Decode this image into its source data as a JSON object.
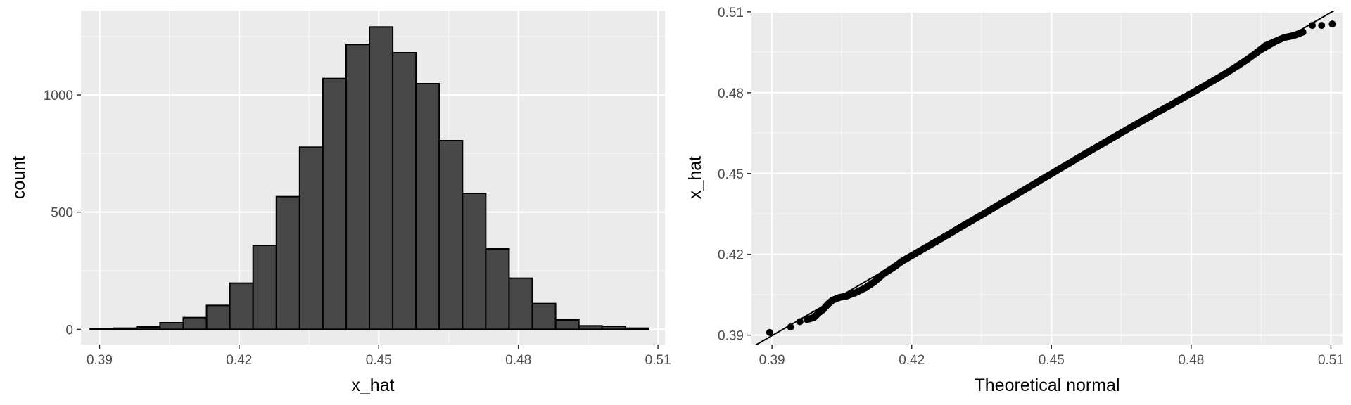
{
  "colors": {
    "panel_bg": "#ebebeb",
    "grid_major": "#ffffff",
    "grid_minor": "#f7f7f7",
    "bar_fill": "#474747",
    "bar_stroke": "#000000",
    "point": "#000000",
    "tick_text": "#4d4d4d",
    "tick_mark": "#333333"
  },
  "chart_data": [
    {
      "type": "bar",
      "subtype": "histogram",
      "xlabel": "x_hat",
      "ylabel": "count",
      "xlim": [
        0.386,
        0.5115
      ],
      "ylim": [
        -65,
        1360
      ],
      "x_ticks": [
        0.39,
        0.42,
        0.45,
        0.48,
        0.51
      ],
      "x_tick_labels": [
        "0.39",
        "0.42",
        "0.45",
        "0.48",
        "0.51"
      ],
      "y_ticks": [
        0,
        500,
        1000
      ],
      "y_tick_labels": [
        "0",
        "500",
        "1000"
      ],
      "grid": true,
      "bin_width": 0.005,
      "bins_start": [
        0.388,
        0.393,
        0.398,
        0.403,
        0.408,
        0.413,
        0.418,
        0.423,
        0.428,
        0.433,
        0.438,
        0.443,
        0.448,
        0.453,
        0.458,
        0.463,
        0.468,
        0.473,
        0.478,
        0.483,
        0.488,
        0.493,
        0.498,
        0.503
      ],
      "values": [
        2,
        5,
        10,
        28,
        50,
        102,
        197,
        358,
        566,
        777,
        1070,
        1215,
        1290,
        1180,
        1048,
        805,
        580,
        343,
        218,
        110,
        40,
        15,
        13,
        5
      ]
    },
    {
      "type": "scatter",
      "subtype": "qq-plot",
      "xlabel": "Theoretical normal",
      "ylabel": "x_hat",
      "xlim": [
        0.3856,
        0.5125
      ],
      "ylim": [
        0.3865,
        0.5105
      ],
      "x_ticks": [
        0.39,
        0.42,
        0.45,
        0.48,
        0.51
      ],
      "x_tick_labels": [
        "0.39",
        "0.42",
        "0.45",
        "0.48",
        "0.51"
      ],
      "y_ticks": [
        0.39,
        0.42,
        0.45,
        0.48,
        0.51
      ],
      "y_tick_labels": [
        "0.39",
        "0.42",
        "0.45",
        "0.48",
        "0.51"
      ],
      "grid": true,
      "reference_line": {
        "intercept": -0.0002,
        "slope": 1.0
      },
      "points": [
        [
          0.3895,
          0.391
        ],
        [
          0.394,
          0.393
        ],
        [
          0.396,
          0.395
        ],
        [
          0.3975,
          0.3958
        ],
        [
          0.399,
          0.3965
        ],
        [
          0.4,
          0.3982
        ],
        [
          0.401,
          0.3995
        ],
        [
          0.402,
          0.4015
        ],
        [
          0.403,
          0.403
        ],
        [
          0.4045,
          0.404
        ],
        [
          0.406,
          0.4045
        ],
        [
          0.408,
          0.4058
        ],
        [
          0.41,
          0.4075
        ],
        [
          0.412,
          0.4098
        ],
        [
          0.414,
          0.4128
        ],
        [
          0.416,
          0.415
        ],
        [
          0.418,
          0.4175
        ],
        [
          0.42,
          0.4195
        ],
        [
          0.422,
          0.4215
        ],
        [
          0.424,
          0.4235
        ],
        [
          0.426,
          0.4255
        ],
        [
          0.428,
          0.4275
        ],
        [
          0.43,
          0.4296
        ],
        [
          0.432,
          0.4316
        ],
        [
          0.434,
          0.4336
        ],
        [
          0.436,
          0.4356
        ],
        [
          0.438,
          0.4377
        ],
        [
          0.44,
          0.4397
        ],
        [
          0.442,
          0.4417
        ],
        [
          0.444,
          0.4438
        ],
        [
          0.446,
          0.4458
        ],
        [
          0.448,
          0.4479
        ],
        [
          0.45,
          0.4499
        ],
        [
          0.452,
          0.452
        ],
        [
          0.454,
          0.454
        ],
        [
          0.456,
          0.4561
        ],
        [
          0.458,
          0.4581
        ],
        [
          0.46,
          0.4601
        ],
        [
          0.462,
          0.4621
        ],
        [
          0.464,
          0.4641
        ],
        [
          0.466,
          0.4661
        ],
        [
          0.468,
          0.4681
        ],
        [
          0.47,
          0.47
        ],
        [
          0.472,
          0.472
        ],
        [
          0.474,
          0.4739
        ],
        [
          0.476,
          0.4758
        ],
        [
          0.478,
          0.4778
        ],
        [
          0.48,
          0.4797
        ],
        [
          0.482,
          0.4817
        ],
        [
          0.484,
          0.4837
        ],
        [
          0.486,
          0.4857
        ],
        [
          0.488,
          0.4878
        ],
        [
          0.49,
          0.49
        ],
        [
          0.492,
          0.4923
        ],
        [
          0.494,
          0.4948
        ],
        [
          0.496,
          0.4975
        ],
        [
          0.498,
          0.499
        ],
        [
          0.5,
          0.5005
        ],
        [
          0.502,
          0.5012
        ],
        [
          0.504,
          0.5025
        ],
        [
          0.506,
          0.505
        ],
        [
          0.508,
          0.505
        ],
        [
          0.5103,
          0.5055
        ]
      ]
    }
  ]
}
